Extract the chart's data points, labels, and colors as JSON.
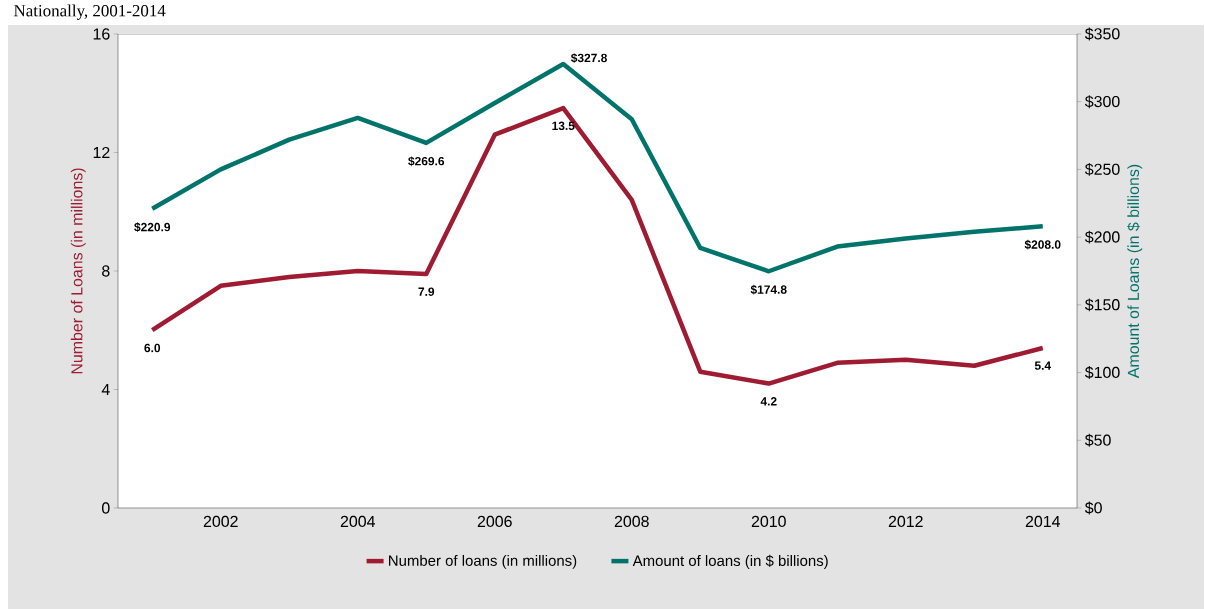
{
  "chart_data": {
    "type": "line",
    "title": "Nationally, 2001-2014",
    "categories": [
      null,
      "2002",
      null,
      "2004",
      null,
      "2006",
      null,
      "2008",
      null,
      "2010",
      null,
      "2012",
      null,
      "2014"
    ],
    "series": [
      {
        "name": "Number of loans (in millions)",
        "color": "#9e1b32",
        "values": [
          6.0,
          7.5,
          7.8,
          8.0,
          7.9,
          12.6,
          13.5,
          10.4,
          4.6,
          4.2,
          4.9,
          5.0,
          4.8,
          5.4
        ],
        "value_labels": [
          "6.0",
          null,
          null,
          null,
          "7.9",
          null,
          "13.5",
          null,
          null,
          "4.2",
          null,
          null,
          null,
          "5.4"
        ]
      },
      {
        "name": "Amount of loans (in $ billions)",
        "color": "#00736a",
        "axis": "y2",
        "values": [
          220.9,
          250,
          272,
          288,
          269.6,
          299,
          327.8,
          287,
          192,
          174.8,
          193,
          199,
          204,
          208.0
        ],
        "value_labels": [
          "$220.9",
          null,
          null,
          null,
          "$269.6",
          null,
          "$327.8",
          null,
          null,
          "$174.8",
          null,
          null,
          null,
          "$208.0"
        ]
      }
    ],
    "ylabel": "Number of Loans (in millions)",
    "y2label": "Amount of Loans (in $ billions)",
    "ylim": [
      0,
      16
    ],
    "yticks": [
      0,
      4,
      8,
      12,
      16
    ],
    "y2lim": [
      0,
      350
    ],
    "y2ticks": [
      {
        "value": 0,
        "label": "$0"
      },
      {
        "value": 50,
        "label": "$50"
      },
      {
        "value": 100,
        "label": "$100"
      },
      {
        "value": 150,
        "label": "$150"
      },
      {
        "value": 200,
        "label": "$200"
      },
      {
        "value": 250,
        "label": "$250"
      },
      {
        "value": 300,
        "label": "$300"
      },
      {
        "value": 350,
        "label": "$350"
      }
    ],
    "grid": false,
    "legend": "bottom",
    "marker": "none",
    "line_style": "solid"
  }
}
